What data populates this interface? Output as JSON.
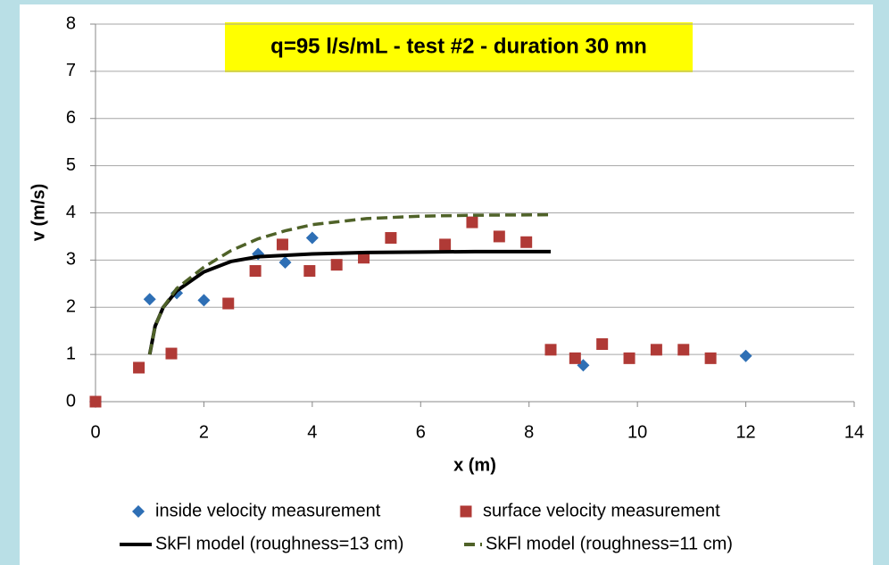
{
  "chart_data": {
    "type": "scatter",
    "title": "q=95 l/s/mL - test #2 - duration 30 mn",
    "xlabel": "x (m)",
    "ylabel": "v (m/s)",
    "xlim": [
      0,
      14
    ],
    "xticks": [
      0,
      2,
      4,
      6,
      8,
      10,
      12,
      14
    ],
    "ylim": [
      0,
      8
    ],
    "yticks": [
      0,
      1,
      2,
      3,
      4,
      5,
      6,
      7,
      8
    ],
    "grid": true,
    "series": [
      {
        "name": "inside velocity measurement",
        "type": "scatter",
        "marker": "diamond",
        "color": "#2e6fb5",
        "x": [
          0,
          1,
          1.5,
          2,
          3,
          3.5,
          4,
          9,
          12
        ],
        "values": [
          0,
          2.17,
          2.3,
          2.15,
          3.13,
          2.95,
          3.47,
          0.77,
          0.97
        ]
      },
      {
        "name": "surface velocity measurement",
        "type": "scatter",
        "marker": "square",
        "color": "#b03a36",
        "x": [
          0,
          0.8,
          1.4,
          2.45,
          2.95,
          3.45,
          3.95,
          4.45,
          4.95,
          5.45,
          6.45,
          6.95,
          7.45,
          7.95,
          8.4,
          8.85,
          9.35,
          9.85,
          10.35,
          10.85,
          11.35
        ],
        "values": [
          0,
          0.72,
          1.02,
          2.08,
          2.77,
          3.33,
          2.77,
          2.9,
          3.05,
          3.47,
          3.33,
          3.8,
          3.5,
          3.38,
          1.1,
          0.92,
          1.22,
          0.92,
          1.1,
          1.1,
          0.92
        ]
      },
      {
        "name": "SkFl model (roughness=13 cm)",
        "type": "line",
        "dash": false,
        "color": "#000000",
        "x": [
          1,
          1.1,
          1.25,
          1.5,
          2,
          2.5,
          3,
          4,
          5,
          6,
          7,
          8.4
        ],
        "values": [
          1,
          1.6,
          2.0,
          2.35,
          2.75,
          2.97,
          3.07,
          3.13,
          3.16,
          3.17,
          3.18,
          3.18
        ]
      },
      {
        "name": "SkFl model (roughness=11 cm)",
        "type": "line",
        "dash": true,
        "color": "#4f6228",
        "x": [
          1,
          1.1,
          1.25,
          1.5,
          2,
          2.5,
          3,
          3.5,
          4,
          5,
          6,
          7,
          8.4
        ],
        "values": [
          1,
          1.6,
          2.0,
          2.4,
          2.85,
          3.2,
          3.45,
          3.62,
          3.75,
          3.88,
          3.93,
          3.95,
          3.96
        ]
      }
    ]
  }
}
